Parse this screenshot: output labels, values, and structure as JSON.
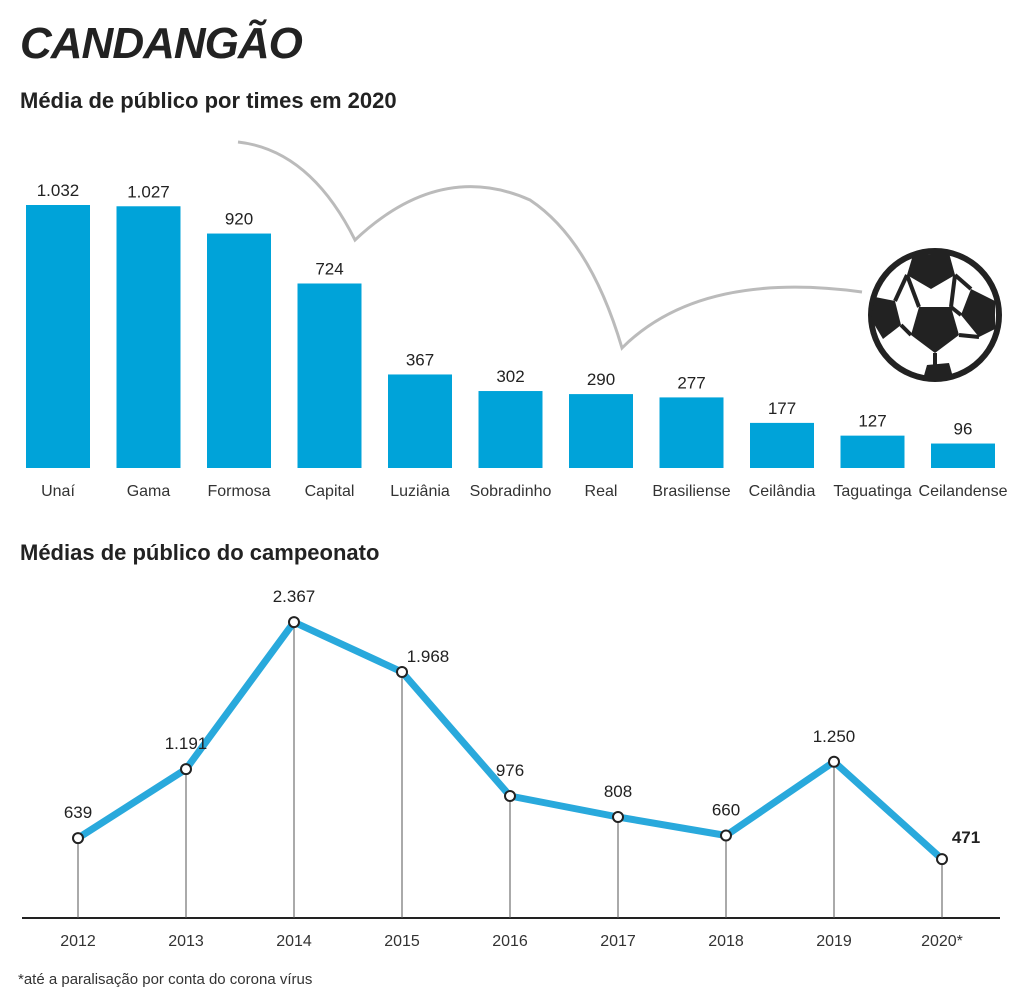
{
  "title": "CANDANGÃO",
  "footnote": "*até a paralisação por conta do corona vírus",
  "chart_data": [
    {
      "type": "bar",
      "title": "Média de público por times em 2020",
      "categories": [
        "Unaí",
        "Gama",
        "Formosa",
        "Capital",
        "Luziânia",
        "Sobradinho",
        "Real",
        "Brasiliense",
        "Ceilândia",
        "Taguatinga",
        "Ceilandense"
      ],
      "values": [
        1032,
        1027,
        920,
        724,
        367,
        302,
        290,
        277,
        177,
        127,
        96
      ],
      "value_labels": [
        "1.032",
        "1.027",
        "920",
        "724",
        "367",
        "302",
        "290",
        "277",
        "177",
        "127",
        "96"
      ],
      "color": "#00a3d9"
    },
    {
      "type": "line",
      "title": "Médias de público do campeonato",
      "categories": [
        "2012",
        "2013",
        "2014",
        "2015",
        "2016",
        "2017",
        "2018",
        "2019",
        "2020*"
      ],
      "values": [
        639,
        1191,
        2367,
        1968,
        976,
        808,
        660,
        1250,
        471
      ],
      "value_labels": [
        "639",
        "1.191",
        "2.367",
        "1.968",
        "976",
        "808",
        "660",
        "1.250",
        "471"
      ],
      "color": "#29a9dc"
    }
  ]
}
